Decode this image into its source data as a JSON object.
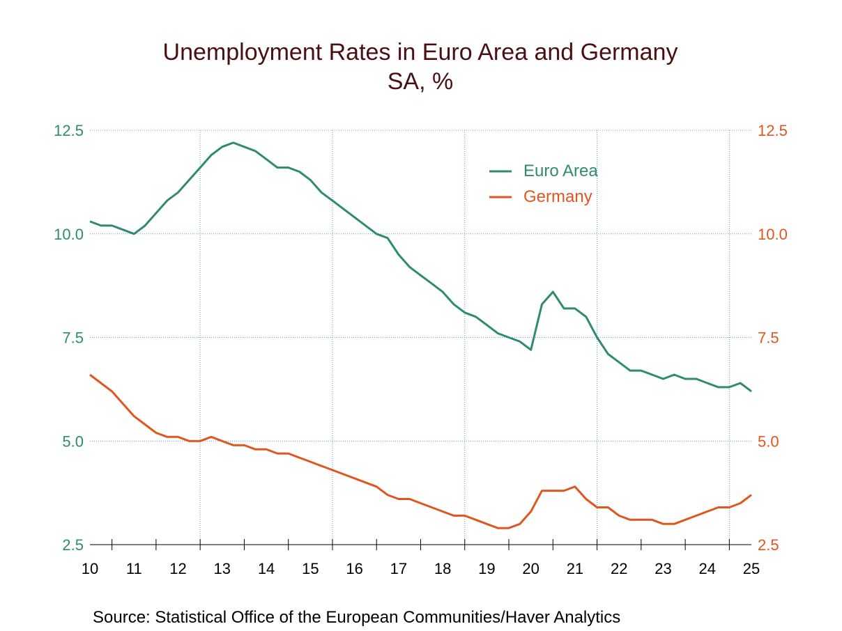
{
  "chart_data": {
    "type": "line",
    "title": "Unemployment Rates in Euro Area and Germany",
    "subtitle": "SA, %",
    "source": "Source:  Statistical Office of the European Communities/Haver Analytics",
    "x_ticks": [
      "10",
      "11",
      "12",
      "13",
      "14",
      "15",
      "16",
      "17",
      "18",
      "19",
      "20",
      "21",
      "22",
      "23",
      "24",
      "25"
    ],
    "xlim": [
      2010.0,
      2025.0
    ],
    "ylim": [
      2.5,
      12.5
    ],
    "y_ticks_left": [
      "12.5",
      "10.0",
      "7.5",
      "5.0",
      "2.5"
    ],
    "y_ticks_right": [
      "12.5",
      "10.0",
      "7.5",
      "5.0",
      "2.5"
    ],
    "y_tick_values": [
      12.5,
      10.0,
      7.5,
      5.0,
      2.5
    ],
    "vertical_grid_years": [
      2012.5,
      2015.5,
      2018.5,
      2021.5,
      2024.5
    ],
    "grid": true,
    "legend_position": "top-right",
    "series": [
      {
        "name": "Euro Area",
        "color": "#2e8b6e",
        "points": [
          [
            2010.0,
            10.3
          ],
          [
            2010.25,
            10.2
          ],
          [
            2010.5,
            10.2
          ],
          [
            2010.75,
            10.1
          ],
          [
            2011.0,
            10.0
          ],
          [
            2011.25,
            10.2
          ],
          [
            2011.5,
            10.5
          ],
          [
            2011.75,
            10.8
          ],
          [
            2012.0,
            11.0
          ],
          [
            2012.25,
            11.3
          ],
          [
            2012.5,
            11.6
          ],
          [
            2012.75,
            11.9
          ],
          [
            2013.0,
            12.1
          ],
          [
            2013.25,
            12.2
          ],
          [
            2013.5,
            12.1
          ],
          [
            2013.75,
            12.0
          ],
          [
            2014.0,
            11.8
          ],
          [
            2014.25,
            11.6
          ],
          [
            2014.5,
            11.6
          ],
          [
            2014.75,
            11.5
          ],
          [
            2015.0,
            11.3
          ],
          [
            2015.25,
            11.0
          ],
          [
            2015.5,
            10.8
          ],
          [
            2015.75,
            10.6
          ],
          [
            2016.0,
            10.4
          ],
          [
            2016.25,
            10.2
          ],
          [
            2016.5,
            10.0
          ],
          [
            2016.75,
            9.9
          ],
          [
            2017.0,
            9.5
          ],
          [
            2017.25,
            9.2
          ],
          [
            2017.5,
            9.0
          ],
          [
            2017.75,
            8.8
          ],
          [
            2018.0,
            8.6
          ],
          [
            2018.25,
            8.3
          ],
          [
            2018.5,
            8.1
          ],
          [
            2018.75,
            8.0
          ],
          [
            2019.0,
            7.8
          ],
          [
            2019.25,
            7.6
          ],
          [
            2019.5,
            7.5
          ],
          [
            2019.75,
            7.4
          ],
          [
            2020.0,
            7.2
          ],
          [
            2020.25,
            8.3
          ],
          [
            2020.5,
            8.6
          ],
          [
            2020.75,
            8.2
          ],
          [
            2021.0,
            8.2
          ],
          [
            2021.25,
            8.0
          ],
          [
            2021.5,
            7.5
          ],
          [
            2021.75,
            7.1
          ],
          [
            2022.0,
            6.9
          ],
          [
            2022.25,
            6.7
          ],
          [
            2022.5,
            6.7
          ],
          [
            2022.75,
            6.6
          ],
          [
            2023.0,
            6.5
          ],
          [
            2023.25,
            6.6
          ],
          [
            2023.5,
            6.5
          ],
          [
            2023.75,
            6.5
          ],
          [
            2024.0,
            6.4
          ],
          [
            2024.25,
            6.3
          ],
          [
            2024.5,
            6.3
          ],
          [
            2024.75,
            6.4
          ],
          [
            2025.0,
            6.2
          ]
        ]
      },
      {
        "name": "Germany",
        "color": "#e0561f",
        "points": [
          [
            2010.0,
            6.6
          ],
          [
            2010.25,
            6.4
          ],
          [
            2010.5,
            6.2
          ],
          [
            2010.75,
            5.9
          ],
          [
            2011.0,
            5.6
          ],
          [
            2011.25,
            5.4
          ],
          [
            2011.5,
            5.2
          ],
          [
            2011.75,
            5.1
          ],
          [
            2012.0,
            5.1
          ],
          [
            2012.25,
            5.0
          ],
          [
            2012.5,
            5.0
          ],
          [
            2012.75,
            5.1
          ],
          [
            2013.0,
            5.0
          ],
          [
            2013.25,
            4.9
          ],
          [
            2013.5,
            4.9
          ],
          [
            2013.75,
            4.8
          ],
          [
            2014.0,
            4.8
          ],
          [
            2014.25,
            4.7
          ],
          [
            2014.5,
            4.7
          ],
          [
            2014.75,
            4.6
          ],
          [
            2015.0,
            4.5
          ],
          [
            2015.25,
            4.4
          ],
          [
            2015.5,
            4.3
          ],
          [
            2015.75,
            4.2
          ],
          [
            2016.0,
            4.1
          ],
          [
            2016.25,
            4.0
          ],
          [
            2016.5,
            3.9
          ],
          [
            2016.75,
            3.7
          ],
          [
            2017.0,
            3.6
          ],
          [
            2017.25,
            3.6
          ],
          [
            2017.5,
            3.5
          ],
          [
            2017.75,
            3.4
          ],
          [
            2018.0,
            3.3
          ],
          [
            2018.25,
            3.2
          ],
          [
            2018.5,
            3.2
          ],
          [
            2018.75,
            3.1
          ],
          [
            2019.0,
            3.0
          ],
          [
            2019.25,
            2.9
          ],
          [
            2019.5,
            2.9
          ],
          [
            2019.75,
            3.0
          ],
          [
            2020.0,
            3.3
          ],
          [
            2020.25,
            3.8
          ],
          [
            2020.5,
            3.8
          ],
          [
            2020.75,
            3.8
          ],
          [
            2021.0,
            3.9
          ],
          [
            2021.25,
            3.6
          ],
          [
            2021.5,
            3.4
          ],
          [
            2021.75,
            3.4
          ],
          [
            2022.0,
            3.2
          ],
          [
            2022.25,
            3.1
          ],
          [
            2022.5,
            3.1
          ],
          [
            2022.75,
            3.1
          ],
          [
            2023.0,
            3.0
          ],
          [
            2023.25,
            3.0
          ],
          [
            2023.5,
            3.1
          ],
          [
            2023.75,
            3.2
          ],
          [
            2024.0,
            3.3
          ],
          [
            2024.25,
            3.4
          ],
          [
            2024.5,
            3.4
          ],
          [
            2024.75,
            3.5
          ],
          [
            2025.0,
            3.7
          ]
        ]
      }
    ]
  }
}
